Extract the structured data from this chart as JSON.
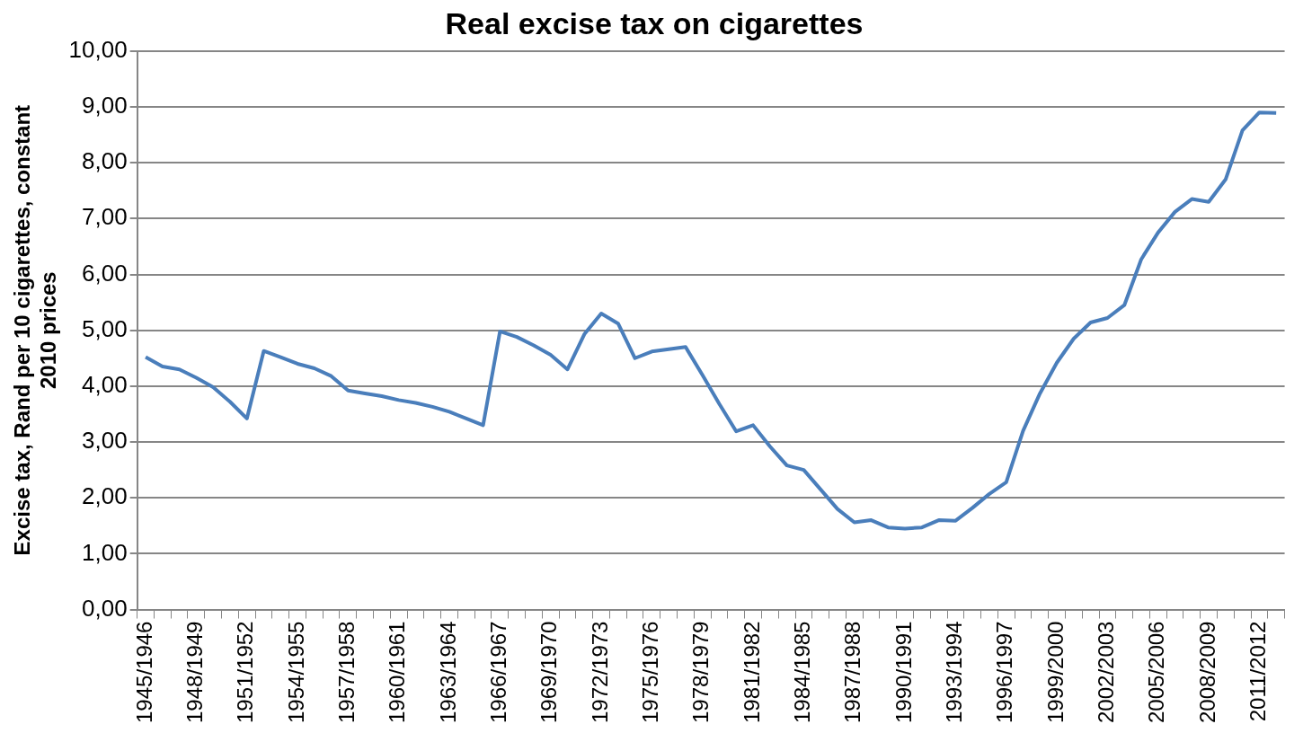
{
  "chart_data": {
    "type": "line",
    "title": "Real excise tax on cigarettes",
    "ylabel": "Excise tax, Rand per 10 cigarettes, constant 2010 prices",
    "categories": [
      "1945/1946",
      null,
      null,
      "1948/1949",
      null,
      null,
      "1951/1952",
      null,
      null,
      "1954/1955",
      null,
      null,
      "1957/1958",
      null,
      null,
      "1960/1961",
      null,
      null,
      "1963/1964",
      null,
      null,
      "1966/1967",
      null,
      null,
      "1969/1970",
      null,
      null,
      "1972/1973",
      null,
      null,
      "1975/1976",
      null,
      null,
      "1978/1979",
      null,
      null,
      "1981/1982",
      null,
      null,
      "1984/1985",
      null,
      null,
      "1987/1988",
      null,
      null,
      "1990/1991",
      null,
      null,
      "1993/1994",
      null,
      null,
      "1996/1997",
      null,
      null,
      "1999/2000",
      null,
      null,
      "2002/2003",
      null,
      null,
      "2005/2006",
      null,
      null,
      "2008/2009",
      null,
      null,
      "2011/2012",
      null
    ],
    "series": [
      {
        "color": "#4a7ebb",
        "values": [
          4.52,
          4.35,
          4.3,
          4.15,
          3.98,
          3.72,
          3.42,
          4.63,
          4.52,
          4.4,
          4.32,
          4.18,
          3.92,
          3.87,
          3.82,
          3.75,
          3.7,
          3.63,
          3.54,
          3.42,
          3.3,
          4.98,
          4.88,
          4.73,
          4.56,
          4.3,
          4.93,
          5.3,
          5.12,
          4.5,
          4.62,
          4.66,
          4.7,
          4.2,
          3.68,
          3.19,
          3.3,
          2.92,
          2.58,
          2.5,
          2.15,
          1.8,
          1.56,
          1.6,
          1.47,
          1.45,
          1.47,
          1.6,
          1.59,
          1.82,
          2.07,
          2.28,
          3.2,
          3.87,
          4.42,
          4.85,
          5.14,
          5.22,
          5.45,
          6.27,
          6.75,
          7.12,
          7.35,
          7.3,
          7.7,
          8.58,
          8.9,
          8.89
        ]
      }
    ],
    "ylim": [
      0,
      10
    ],
    "yticks": [
      {
        "value": 0,
        "label": "0,00"
      },
      {
        "value": 1,
        "label": "1,00"
      },
      {
        "value": 2,
        "label": "2,00"
      },
      {
        "value": 3,
        "label": "3,00"
      },
      {
        "value": 4,
        "label": "4,00"
      },
      {
        "value": 5,
        "label": "5,00"
      },
      {
        "value": 6,
        "label": "6,00"
      },
      {
        "value": 7,
        "label": "7,00"
      },
      {
        "value": 8,
        "label": "8,00"
      },
      {
        "value": 9,
        "label": "9,00"
      },
      {
        "value": 10,
        "label": "10,00"
      }
    ],
    "grid": "y",
    "legend": false,
    "marker": "none",
    "line_style": "solid"
  }
}
